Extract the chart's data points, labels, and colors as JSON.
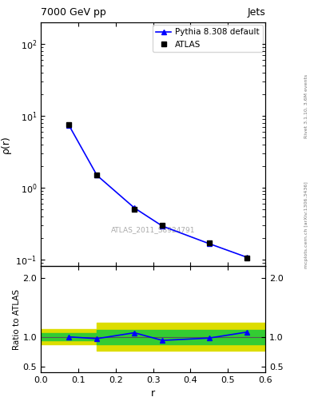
{
  "title_left": "7000 GeV pp",
  "title_right": "Jets",
  "xlabel": "r",
  "ylabel_main": "ρ(r)",
  "ylabel_ratio": "Ratio to ATLAS",
  "watermark": "ATLAS_2011_S8924791",
  "right_label_top": "Rivet 3.1.10, 3.6M events",
  "right_label_bot": "mcplots.cern.ch [arXiv:1306.3436]",
  "data_x": [
    0.075,
    0.15,
    0.25,
    0.325,
    0.45,
    0.55
  ],
  "data_y_atlas": [
    7.5,
    1.5,
    0.5,
    0.3,
    0.17,
    0.105
  ],
  "data_y_pythia": [
    7.4,
    1.48,
    0.52,
    0.29,
    0.165,
    0.107
  ],
  "ratio_x": [
    0.075,
    0.15,
    0.25,
    0.325,
    0.45,
    0.55
  ],
  "ratio_y": [
    1.0,
    0.97,
    1.07,
    0.94,
    0.98,
    1.08
  ],
  "atlas_color": "#000000",
  "pythia_color": "#0000ff",
  "green_color": "#33cc33",
  "yellow_color": "#dddd00",
  "xlim": [
    0,
    0.6
  ],
  "ylim_main": [
    0.08,
    200
  ],
  "ylim_ratio": [
    0.4,
    2.2
  ],
  "ratio_yticks": [
    0.5,
    1.0,
    2.0
  ],
  "yellow_x": [
    0.0,
    0.15,
    0.15,
    0.275,
    0.275,
    0.6
  ],
  "yellow_lo": [
    0.87,
    0.87,
    0.76,
    0.76,
    0.76,
    0.76
  ],
  "yellow_hi": [
    1.13,
    1.13,
    1.24,
    1.24,
    1.24,
    1.24
  ],
  "green_x": [
    0.0,
    0.15,
    0.15,
    0.275,
    0.275,
    0.6
  ],
  "green_lo": [
    0.94,
    0.94,
    0.88,
    0.88,
    0.88,
    0.88
  ],
  "green_hi": [
    1.06,
    1.06,
    1.12,
    1.12,
    1.12,
    1.12
  ]
}
